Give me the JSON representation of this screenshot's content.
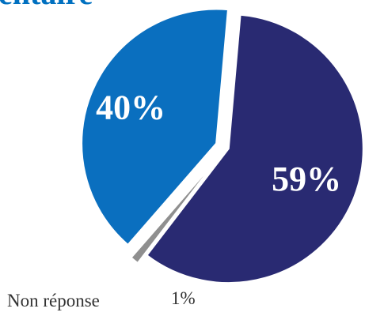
{
  "title_fragment": "entaire",
  "colors": {
    "title": "#0070c0",
    "slice_59": "#292a72",
    "slice_40": "#0a6fbf",
    "slice_1": "#8f8f8f",
    "background": "#ffffff"
  },
  "chart_data": {
    "type": "pie",
    "title": "",
    "slices": [
      {
        "label": "",
        "value": 59,
        "display": "59%",
        "color": "#292a72"
      },
      {
        "label": "Non réponse",
        "value": 1,
        "display": "1%",
        "color": "#8f8f8f"
      },
      {
        "label": "",
        "value": 40,
        "display": "40%",
        "color": "#0a6fbf"
      }
    ],
    "legend": "none"
  }
}
